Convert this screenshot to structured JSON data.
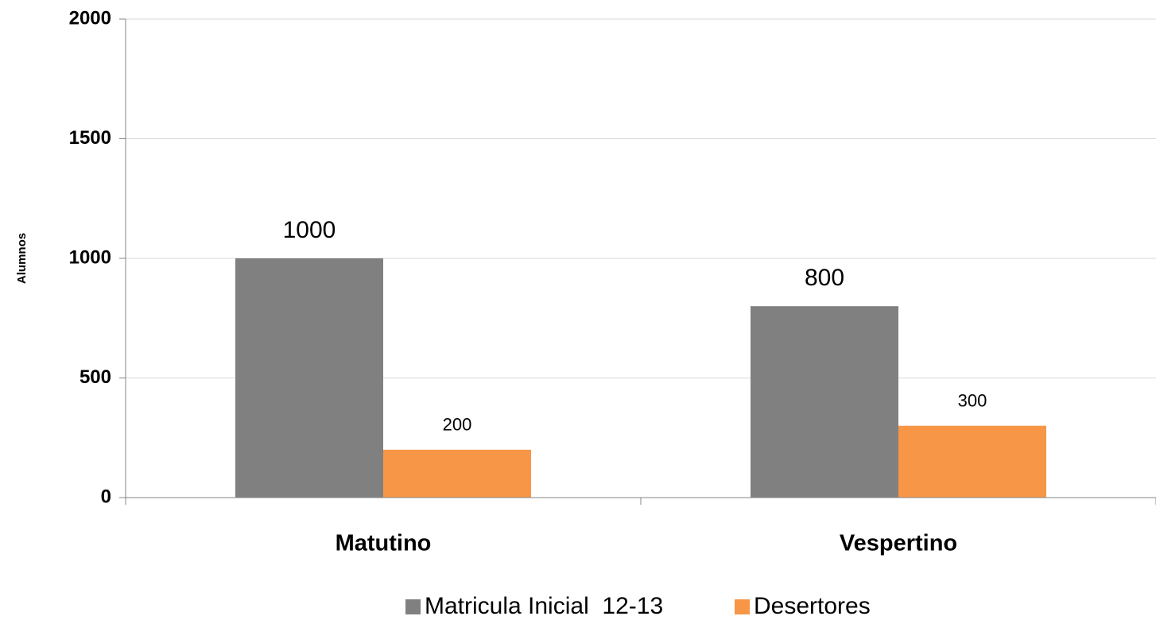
{
  "chart_data": {
    "type": "bar",
    "y_label": "Alumnos",
    "categories": [
      "Matutino",
      "Vespertino"
    ],
    "series": [
      {
        "name": "Matricula Inicial  12-13",
        "color": "#808080",
        "values": [
          1000,
          800
        ]
      },
      {
        "name": "Desertores",
        "color": "#f79646",
        "values": [
          200,
          300
        ]
      }
    ],
    "ylim": [
      0,
      2000
    ],
    "yticks": [
      0,
      500,
      1000,
      1500,
      2000
    ],
    "grid": true,
    "legend": "bottom"
  }
}
